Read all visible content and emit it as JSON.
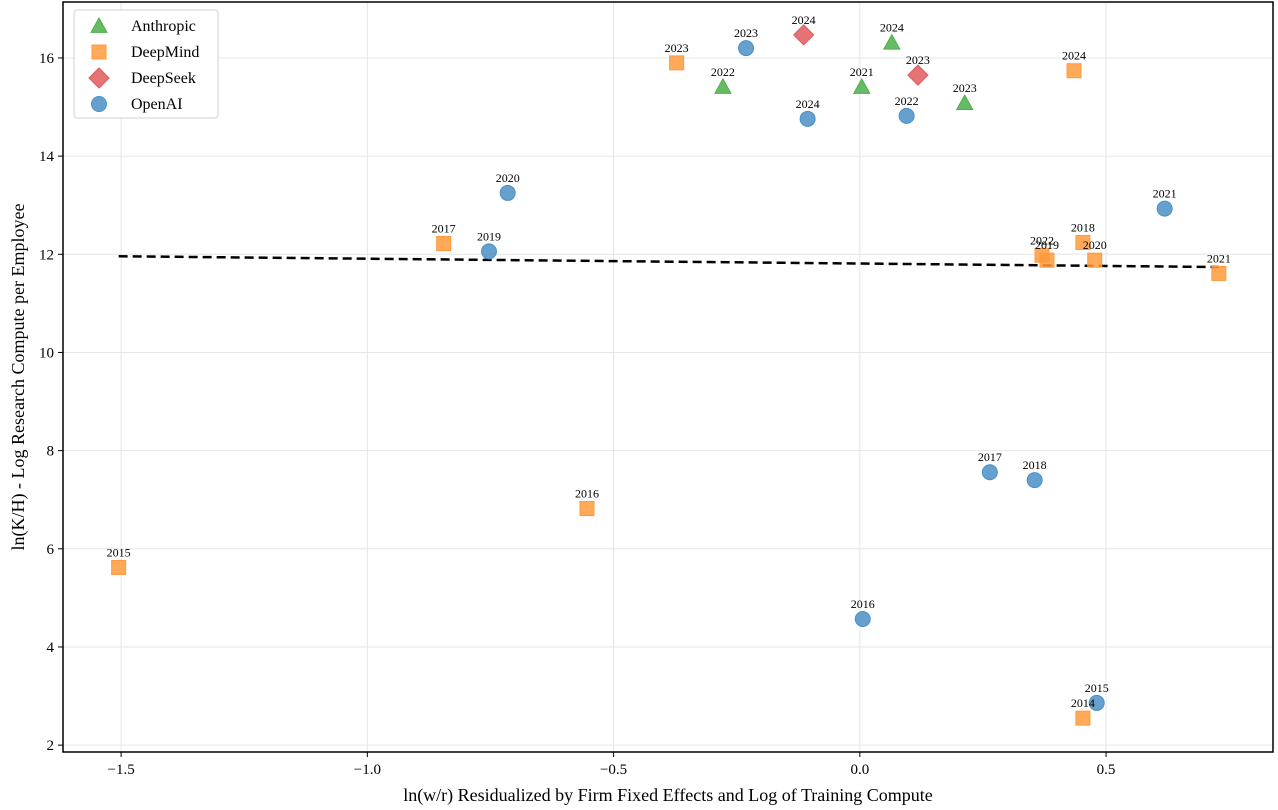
{
  "chart_data": {
    "type": "scatter",
    "title": "",
    "xlabel": "ln(w/r) Residualized by Firm Fixed Effects and Log of Training Compute",
    "ylabel": "ln(K/H) - Log Research Compute per Employee",
    "xlim": [
      -1.618,
      0.839
    ],
    "ylim": [
      1.86,
      17.14
    ],
    "xticks": [
      -1.5,
      -1.0,
      -0.5,
      0.0,
      0.5
    ],
    "xtick_labels": [
      "−1.5",
      "−1.0",
      "−0.5",
      "0.0",
      "0.5"
    ],
    "yticks": [
      2,
      4,
      6,
      8,
      10,
      12,
      14,
      16
    ],
    "ytick_labels": [
      "2",
      "4",
      "6",
      "8",
      "10",
      "12",
      "14",
      "16"
    ],
    "grid": true,
    "legend_position": "top-left",
    "series": [
      {
        "name": "Anthropic",
        "marker": "triangle",
        "color": "#4daf4a",
        "points": [
          {
            "x": -0.278,
            "y": 15.41,
            "label": "2022"
          },
          {
            "x": 0.004,
            "y": 15.41,
            "label": "2021"
          },
          {
            "x": 0.065,
            "y": 16.31,
            "label": "2024"
          },
          {
            "x": 0.213,
            "y": 15.08,
            "label": "2023"
          }
        ]
      },
      {
        "name": "DeepMind",
        "marker": "square",
        "color": "#ff9a3c",
        "points": [
          {
            "x": -1.505,
            "y": 5.62,
            "label": "2015"
          },
          {
            "x": -0.554,
            "y": 6.82,
            "label": "2016"
          },
          {
            "x": -0.845,
            "y": 12.22,
            "label": "2017"
          },
          {
            "x": -0.372,
            "y": 15.9,
            "label": "2023"
          },
          {
            "x": 0.435,
            "y": 15.74,
            "label": "2024"
          },
          {
            "x": 0.37,
            "y": 11.98,
            "label": "2022"
          },
          {
            "x": 0.38,
            "y": 11.88,
            "label": "2019"
          },
          {
            "x": 0.453,
            "y": 12.24,
            "label": "2018"
          },
          {
            "x": 0.477,
            "y": 11.88,
            "label": "2020"
          },
          {
            "x": 0.729,
            "y": 11.61,
            "label": "2021"
          },
          {
            "x": 0.453,
            "y": 2.55,
            "label": "2014"
          }
        ]
      },
      {
        "name": "DeepSeek",
        "marker": "diamond",
        "color": "#e05a5e",
        "points": [
          {
            "x": -0.114,
            "y": 16.47,
            "label": "2024"
          },
          {
            "x": 0.118,
            "y": 15.65,
            "label": "2023"
          }
        ]
      },
      {
        "name": "OpenAI",
        "marker": "circle",
        "color": "#4a8fc7",
        "points": [
          {
            "x": -0.231,
            "y": 16.2,
            "label": "2023"
          },
          {
            "x": -0.106,
            "y": 14.76,
            "label": "2024"
          },
          {
            "x": 0.095,
            "y": 14.82,
            "label": "2022"
          },
          {
            "x": -0.715,
            "y": 13.25,
            "label": "2020"
          },
          {
            "x": -0.753,
            "y": 12.06,
            "label": "2019"
          },
          {
            "x": 0.619,
            "y": 12.93,
            "label": "2021"
          },
          {
            "x": 0.264,
            "y": 7.56,
            "label": "2017"
          },
          {
            "x": 0.355,
            "y": 7.4,
            "label": "2018"
          },
          {
            "x": 0.006,
            "y": 4.57,
            "label": "2016"
          },
          {
            "x": 0.481,
            "y": 2.86,
            "label": "2015"
          }
        ]
      }
    ],
    "trend_line": {
      "style": "dashed",
      "color": "#000000",
      "x": [
        -1.505,
        0.729
      ],
      "y": [
        11.96,
        11.74
      ]
    }
  }
}
